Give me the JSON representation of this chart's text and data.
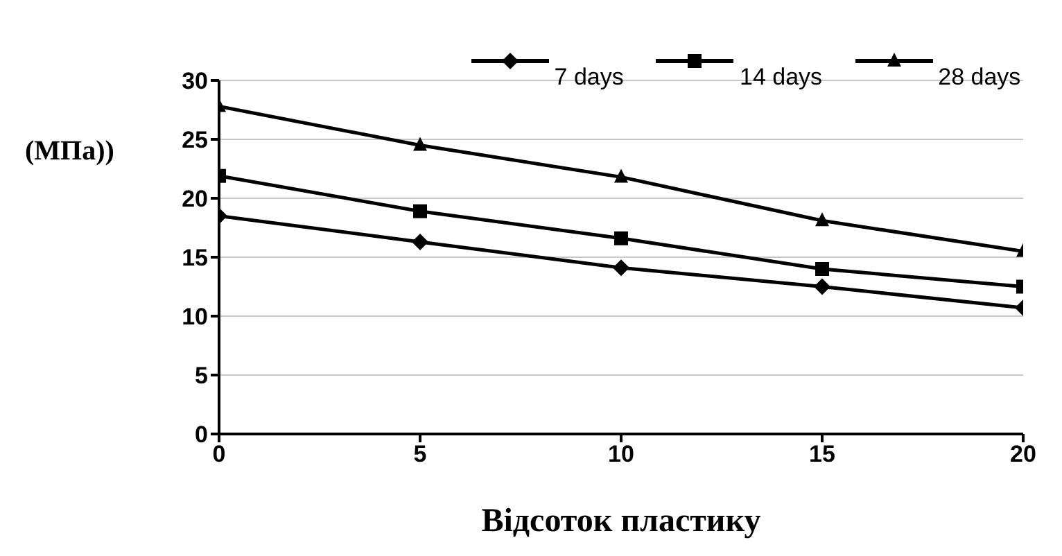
{
  "chart_data": {
    "type": "line",
    "ylabel": "(МПа))",
    "xlabel": "Відсоток пластику",
    "x": [
      0,
      5,
      10,
      15,
      20
    ],
    "xlim": [
      0,
      20
    ],
    "xticks": [
      0,
      5,
      10,
      15,
      20
    ],
    "ylim": [
      0,
      30
    ],
    "yticks": [
      0,
      5,
      10,
      15,
      20,
      25,
      30
    ],
    "grid": "y",
    "legend": "top",
    "series": [
      {
        "name": "7 days",
        "color": "#000000",
        "marker": "diamond",
        "values": [
          18.5,
          16.3,
          14.1,
          12.5,
          10.7
        ]
      },
      {
        "name": "14 days",
        "color": "#000000",
        "marker": "square",
        "values": [
          21.9,
          18.9,
          16.6,
          14.0,
          12.5
        ]
      },
      {
        "name": "28 days",
        "color": "#000000",
        "marker": "triangle",
        "values": [
          27.8,
          24.5,
          21.8,
          18.1,
          15.5
        ]
      }
    ]
  }
}
